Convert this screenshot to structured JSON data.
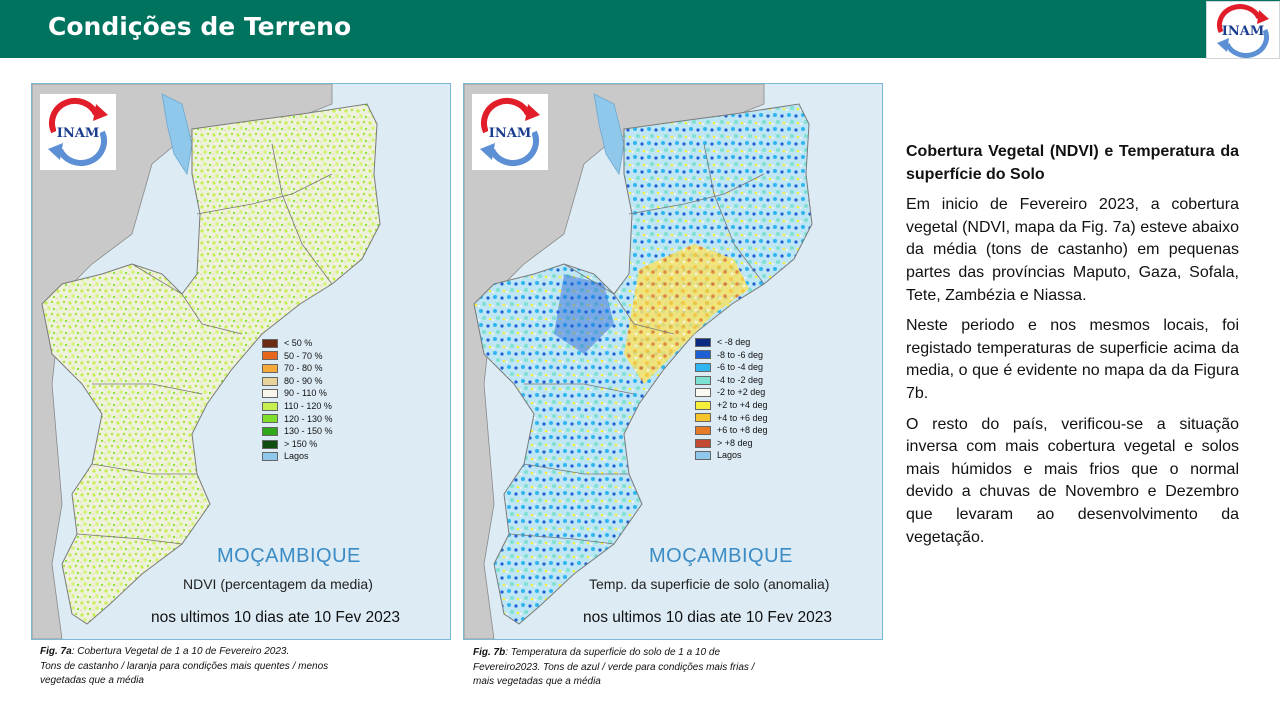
{
  "header": {
    "title": "Condições de Terreno",
    "logo_text": "INAM"
  },
  "maps": [
    {
      "id": "fig7a",
      "logo_text": "INAM",
      "country": "MOÇAMBIQUE",
      "metric": "NDVI (percentagem da media)",
      "period": "nos ultimos 10 dias ate 10 Fev 2023",
      "legend": [
        {
          "label": "< 50 %",
          "color": "#6b2a12"
        },
        {
          "label": "50 - 70 %",
          "color": "#e8651c"
        },
        {
          "label": "70 - 80 %",
          "color": "#f5a93a"
        },
        {
          "label": "80 - 90 %",
          "color": "#e8d39a"
        },
        {
          "label": "90 - 110 %",
          "color": "#f7f5ec"
        },
        {
          "label": "110 - 120 %",
          "color": "#c6ef4f"
        },
        {
          "label": "120 - 130 %",
          "color": "#7ee02a"
        },
        {
          "label": "130 - 150 %",
          "color": "#2fa81a"
        },
        {
          "label": "> 150 %",
          "color": "#0d4d0d"
        },
        {
          "label": "Lagos",
          "color": "#8fc8ea"
        }
      ],
      "caption": {
        "label": "Fig. 7a",
        "text": ": Cobertura Vegetal  de 1 a 10 de Fevereiro  2023.",
        "line2": "Tons de castanho  / laranja para condições mais quentes  / menos",
        "line3": "vegetadas que a média"
      }
    },
    {
      "id": "fig7b",
      "logo_text": "INAM",
      "country": "MOÇAMBIQUE",
      "metric": "Temp. da superficie de solo (anomalia)",
      "period": "nos ultimos 10 dias ate 10 Fev 2023",
      "legend": [
        {
          "label": "< -8 deg",
          "color": "#0c2a82"
        },
        {
          "label": "-8 to -6 deg",
          "color": "#1f5fd6"
        },
        {
          "label": "-6 to -4 deg",
          "color": "#2fb6f0"
        },
        {
          "label": "-4 to -2 deg",
          "color": "#7ee0d0"
        },
        {
          "label": "-2 to +2 deg",
          "color": "#fbfaf2"
        },
        {
          "label": "+2 to +4 deg",
          "color": "#f7f03a"
        },
        {
          "label": "+4 to +6 deg",
          "color": "#f7c32a"
        },
        {
          "label": "+6 to +8 deg",
          "color": "#e77a24"
        },
        {
          "label": "> +8 deg",
          "color": "#c24a33"
        },
        {
          "label": "Lagos",
          "color": "#8fc8ea"
        }
      ],
      "caption": {
        "label": "Fig. 7b",
        "text": ": Temperatura  da superficie  do solo de  1 a 10 de",
        "line2": "Fevereiro2023.  Tons de azul  / verde para condições mais frias /",
        "line3": "mais vegetadas que a média"
      }
    }
  ],
  "article": {
    "heading": "Cobertura  Vegetal  (NDVI)  e  Temperatura da superfície do Solo",
    "paragraphs": [
      "Em inicio de Fevereiro 2023, a cobertura vegetal (NDVI, mapa da Fig. 7a) esteve abaixo da média (tons de castanho) em pequenas partes das províncias Maputo, Gaza, Sofala, Tete, Zambézia e Niassa.",
      "Neste periodo e nos mesmos locais, foi registado temperaturas de superficie acima da media, o que é evidente no mapa da da Figura 7b.",
      "O resto do país, verificou-se a situação inversa com mais cobertura vegetal e solos mais húmidos e mais frios que o normal devido a chuvas de Novembro e Dezembro que levaram ao desenvolvimento da vegetação."
    ]
  }
}
